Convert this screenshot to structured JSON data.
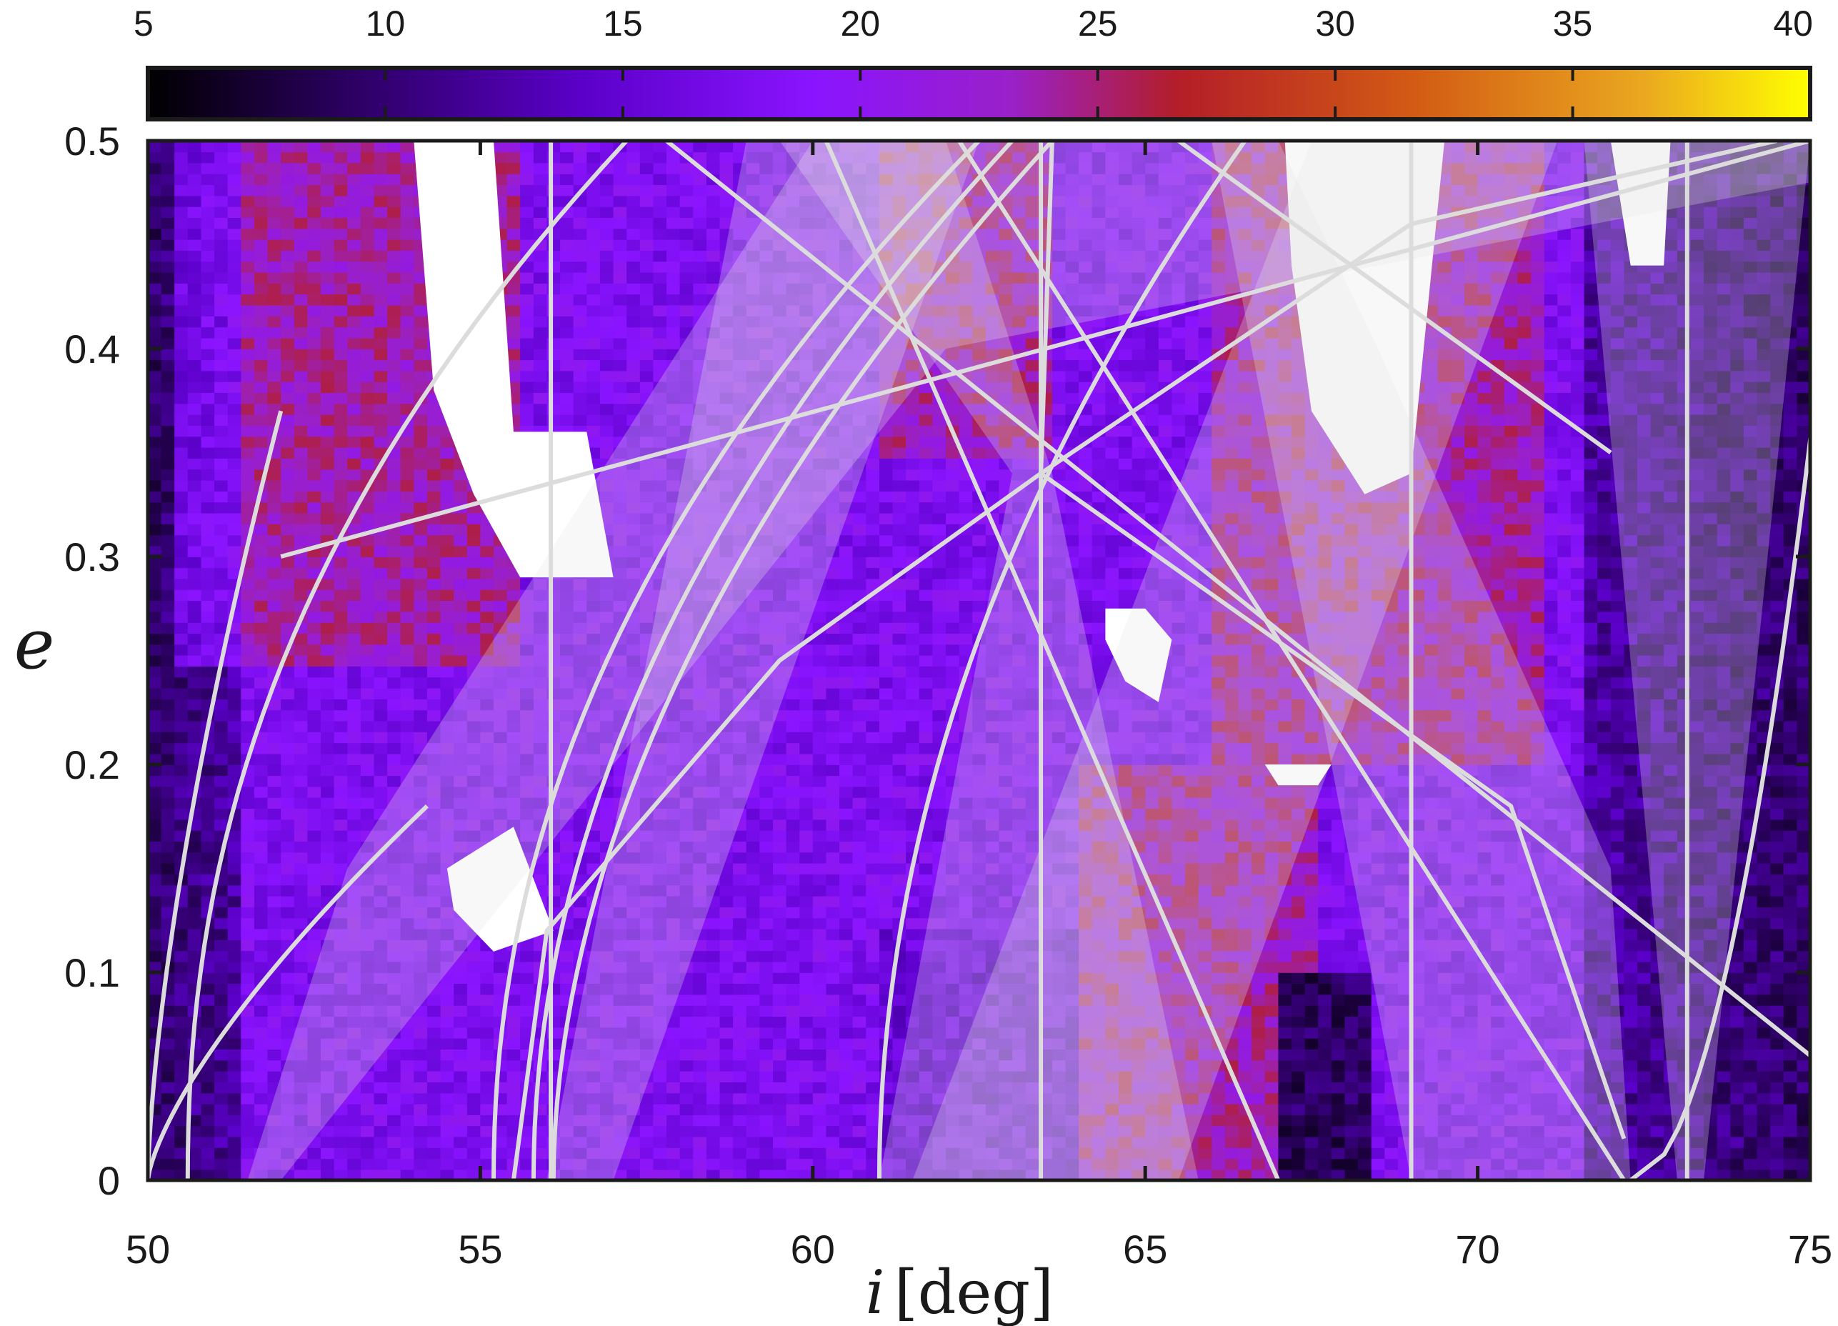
{
  "chart_data": {
    "type": "heatmap",
    "title": "",
    "xlabel": "i",
    "xlabel_unit": "[deg]",
    "ylabel": "e",
    "xlim": [
      50,
      75
    ],
    "ylim": [
      0,
      0.5
    ],
    "x_ticks": [
      "50",
      "55",
      "60",
      "65",
      "70",
      "75"
    ],
    "y_ticks": [
      "0",
      "0.1",
      "0.2",
      "0.3",
      "0.4",
      "0.5"
    ],
    "colorbar": {
      "range": [
        5,
        40
      ],
      "ticks": [
        "5",
        "10",
        "15",
        "20",
        "25",
        "30",
        "35",
        "40"
      ],
      "colormap": "gnuplot",
      "location": "top"
    },
    "colors": {
      "low": "#000000",
      "mid_low": "#5a00c8",
      "mid": "#8a14ff",
      "mid_high": "#b01a40",
      "high": "#e6961e",
      "max": "#ffff00",
      "overlay_lines": "#dcdcdc",
      "overlay_bands": "#e6e6e6"
    },
    "field_notes": {
      "dark_low_regions_i": [
        [
          50,
          51.5
        ],
        [
          71.5,
          75
        ]
      ],
      "high_value_regions": [
        [
          50.5,
          55.5,
          0.25,
          0.5
        ],
        [
          61,
          63.5,
          0.35,
          0.5
        ],
        [
          64,
          67.5,
          0,
          0.2
        ],
        [
          66,
          71,
          0.2,
          0.5
        ]
      ],
      "blank_regions_present": true
    },
    "resonance_lines": {
      "vertical_i": [
        56.06,
        63.43,
        69.0,
        73.15
      ],
      "center_point": {
        "i": 63.43,
        "e": 0.34
      }
    },
    "grid": false,
    "legend": "none"
  }
}
